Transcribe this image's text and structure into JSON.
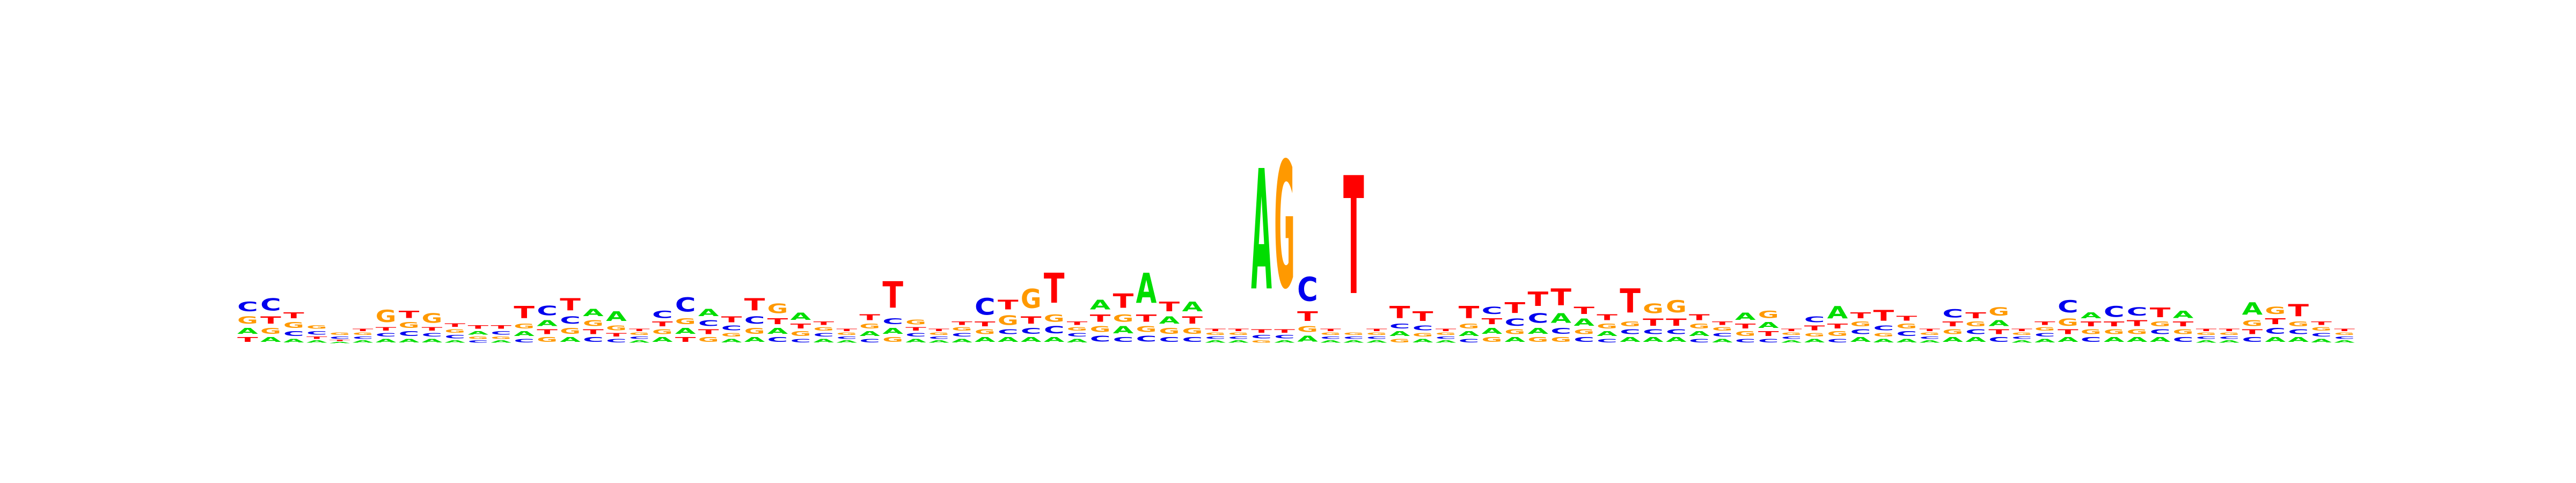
{
  "chart_data": {
    "type": "sequence_logo",
    "title": "",
    "xlabel": "",
    "ylabel": "",
    "y_unit": "bits",
    "ylim": [
      0,
      2
    ],
    "alphabet": [
      "A",
      "C",
      "G",
      "T"
    ],
    "colors": {
      "A": "#00dd00",
      "C": "#0000ee",
      "G": "#ff9900",
      "T": "#ff0000"
    },
    "positions": [
      {
        "A": 0.05,
        "C": 0.08,
        "G": 0.06,
        "T": 0.04
      },
      {
        "A": 0.04,
        "C": 0.1,
        "G": 0.05,
        "T": 0.06
      },
      {
        "A": 0.03,
        "C": 0.04,
        "G": 0.05,
        "T": 0.05
      },
      {
        "A": 0.02,
        "C": 0.03,
        "G": 0.03,
        "T": 0.02
      },
      {
        "A": 0.01,
        "C": 0.02,
        "G": 0.02,
        "T": 0.01
      },
      {
        "A": 0.02,
        "C": 0.02,
        "G": 0.02,
        "T": 0.02
      },
      {
        "A": 0.03,
        "C": 0.03,
        "G": 0.1,
        "T": 0.03
      },
      {
        "A": 0.03,
        "C": 0.04,
        "G": 0.05,
        "T": 0.06
      },
      {
        "A": 0.03,
        "C": 0.03,
        "G": 0.08,
        "T": 0.03
      },
      {
        "A": 0.02,
        "C": 0.03,
        "G": 0.03,
        "T": 0.03
      },
      {
        "A": 0.03,
        "C": 0.02,
        "G": 0.02,
        "T": 0.03
      },
      {
        "A": 0.02,
        "C": 0.03,
        "G": 0.02,
        "T": 0.03
      },
      {
        "A": 0.04,
        "C": 0.03,
        "G": 0.04,
        "T": 0.1
      },
      {
        "A": 0.05,
        "C": 0.08,
        "G": 0.04,
        "T": 0.04
      },
      {
        "A": 0.04,
        "C": 0.06,
        "G": 0.05,
        "T": 0.1
      },
      {
        "A": 0.06,
        "C": 0.04,
        "G": 0.05,
        "T": 0.04
      },
      {
        "A": 0.08,
        "C": 0.03,
        "G": 0.04,
        "T": 0.03
      },
      {
        "A": 0.02,
        "C": 0.02,
        "G": 0.02,
        "T": 0.02
      },
      {
        "A": 0.04,
        "C": 0.06,
        "G": 0.04,
        "T": 0.04
      },
      {
        "A": 0.05,
        "C": 0.12,
        "G": 0.05,
        "T": 0.04
      },
      {
        "A": 0.06,
        "C": 0.05,
        "G": 0.04,
        "T": 0.04
      },
      {
        "A": 0.03,
        "C": 0.04,
        "G": 0.03,
        "T": 0.05
      },
      {
        "A": 0.04,
        "C": 0.06,
        "G": 0.05,
        "T": 0.1
      },
      {
        "A": 0.05,
        "C": 0.04,
        "G": 0.08,
        "T": 0.05
      },
      {
        "A": 0.06,
        "C": 0.03,
        "G": 0.04,
        "T": 0.04
      },
      {
        "A": 0.03,
        "C": 0.03,
        "G": 0.03,
        "T": 0.03
      },
      {
        "A": 0.02,
        "C": 0.02,
        "G": 0.02,
        "T": 0.02
      },
      {
        "A": 0.04,
        "C": 0.03,
        "G": 0.04,
        "T": 0.05
      },
      {
        "A": 0.05,
        "C": 0.05,
        "G": 0.04,
        "T": 0.22
      },
      {
        "A": 0.03,
        "C": 0.03,
        "G": 0.04,
        "T": 0.03
      },
      {
        "A": 0.02,
        "C": 0.02,
        "G": 0.02,
        "T": 0.02
      },
      {
        "A": 0.03,
        "C": 0.03,
        "G": 0.03,
        "T": 0.03
      },
      {
        "A": 0.04,
        "C": 0.14,
        "G": 0.04,
        "T": 0.04
      },
      {
        "A": 0.04,
        "C": 0.04,
        "G": 0.08,
        "T": 0.08
      },
      {
        "A": 0.04,
        "C": 0.05,
        "G": 0.16,
        "T": 0.06
      },
      {
        "A": 0.04,
        "C": 0.06,
        "G": 0.06,
        "T": 0.25
      },
      {
        "A": 0.03,
        "C": 0.03,
        "G": 0.03,
        "T": 0.03
      },
      {
        "A": 0.08,
        "C": 0.05,
        "G": 0.05,
        "T": 0.06
      },
      {
        "A": 0.06,
        "C": 0.04,
        "G": 0.06,
        "T": 0.12
      },
      {
        "A": 0.25,
        "C": 0.05,
        "G": 0.05,
        "T": 0.06
      },
      {
        "A": 0.06,
        "C": 0.04,
        "G": 0.05,
        "T": 0.08
      },
      {
        "A": 0.08,
        "C": 0.04,
        "G": 0.05,
        "T": 0.06
      },
      {
        "A": 0.02,
        "C": 0.02,
        "G": 0.02,
        "T": 0.02
      },
      {
        "A": 0.02,
        "C": 0.02,
        "G": 0.02,
        "T": 0.02
      },
      {
        "A": 1.0,
        "C": 0.03,
        "G": 0.02,
        "T": 0.03
      },
      {
        "A": 0.02,
        "C": 0.03,
        "G": 1.05,
        "T": 0.03
      },
      {
        "A": 0.05,
        "C": 0.2,
        "G": 0.05,
        "T": 0.08
      },
      {
        "A": 0.02,
        "C": 0.02,
        "G": 0.02,
        "T": 0.02
      },
      {
        "A": 0.02,
        "C": 0.02,
        "G": 0.02,
        "T": 0.98
      },
      {
        "A": 0.02,
        "C": 0.02,
        "G": 0.02,
        "T": 0.02
      },
      {
        "A": 0.04,
        "C": 0.04,
        "G": 0.03,
        "T": 0.1
      },
      {
        "A": 0.03,
        "C": 0.04,
        "G": 0.03,
        "T": 0.08
      },
      {
        "A": 0.02,
        "C": 0.02,
        "G": 0.02,
        "T": 0.02
      },
      {
        "A": 0.04,
        "C": 0.03,
        "G": 0.04,
        "T": 0.1
      },
      {
        "A": 0.05,
        "C": 0.06,
        "G": 0.04,
        "T": 0.05
      },
      {
        "A": 0.04,
        "C": 0.06,
        "G": 0.04,
        "T": 0.09
      },
      {
        "A": 0.05,
        "C": 0.08,
        "G": 0.04,
        "T": 0.12
      },
      {
        "A": 0.08,
        "C": 0.05,
        "G": 0.04,
        "T": 0.14
      },
      {
        "A": 0.06,
        "C": 0.04,
        "G": 0.04,
        "T": 0.06
      },
      {
        "A": 0.04,
        "C": 0.03,
        "G": 0.04,
        "T": 0.05
      },
      {
        "A": 0.04,
        "C": 0.04,
        "G": 0.04,
        "T": 0.2
      },
      {
        "A": 0.04,
        "C": 0.04,
        "G": 0.08,
        "T": 0.06
      },
      {
        "A": 0.04,
        "C": 0.04,
        "G": 0.1,
        "T": 0.06
      },
      {
        "A": 0.04,
        "C": 0.03,
        "G": 0.04,
        "T": 0.05
      },
      {
        "A": 0.03,
        "C": 0.03,
        "G": 0.03,
        "T": 0.03
      },
      {
        "A": 0.06,
        "C": 0.03,
        "G": 0.04,
        "T": 0.04
      },
      {
        "A": 0.05,
        "C": 0.03,
        "G": 0.06,
        "T": 0.04
      },
      {
        "A": 0.02,
        "C": 0.02,
        "G": 0.02,
        "T": 0.02
      },
      {
        "A": 0.03,
        "C": 0.05,
        "G": 0.03,
        "T": 0.04
      },
      {
        "A": 0.1,
        "C": 0.03,
        "G": 0.04,
        "T": 0.04
      },
      {
        "A": 0.04,
        "C": 0.04,
        "G": 0.04,
        "T": 0.05
      },
      {
        "A": 0.03,
        "C": 0.04,
        "G": 0.03,
        "T": 0.09
      },
      {
        "A": 0.03,
        "C": 0.04,
        "G": 0.04,
        "T": 0.04
      },
      {
        "A": 0.02,
        "C": 0.02,
        "G": 0.02,
        "T": 0.02
      },
      {
        "A": 0.04,
        "C": 0.07,
        "G": 0.04,
        "T": 0.04
      },
      {
        "A": 0.04,
        "C": 0.04,
        "G": 0.04,
        "T": 0.05
      },
      {
        "A": 0.05,
        "C": 0.04,
        "G": 0.07,
        "T": 0.04
      },
      {
        "A": 0.02,
        "C": 0.02,
        "G": 0.02,
        "T": 0.02
      },
      {
        "A": 0.03,
        "C": 0.03,
        "G": 0.03,
        "T": 0.03
      },
      {
        "A": 0.04,
        "C": 0.1,
        "G": 0.06,
        "T": 0.04
      },
      {
        "A": 0.05,
        "C": 0.04,
        "G": 0.04,
        "T": 0.04
      },
      {
        "A": 0.04,
        "C": 0.09,
        "G": 0.04,
        "T": 0.04
      },
      {
        "A": 0.04,
        "C": 0.07,
        "G": 0.04,
        "T": 0.05
      },
      {
        "A": 0.04,
        "C": 0.04,
        "G": 0.04,
        "T": 0.08
      },
      {
        "A": 0.06,
        "C": 0.04,
        "G": 0.04,
        "T": 0.04
      },
      {
        "A": 0.02,
        "C": 0.02,
        "G": 0.02,
        "T": 0.02
      },
      {
        "A": 0.02,
        "C": 0.02,
        "G": 0.02,
        "T": 0.02
      },
      {
        "A": 0.1,
        "C": 0.04,
        "G": 0.05,
        "T": 0.04
      },
      {
        "A": 0.04,
        "C": 0.05,
        "G": 0.06,
        "T": 0.05
      },
      {
        "A": 0.04,
        "C": 0.04,
        "G": 0.04,
        "T": 0.1
      },
      {
        "A": 0.03,
        "C": 0.03,
        "G": 0.03,
        "T": 0.03
      },
      {
        "A": 0.02,
        "C": 0.02,
        "G": 0.02,
        "T": 0.02
      }
    ]
  }
}
